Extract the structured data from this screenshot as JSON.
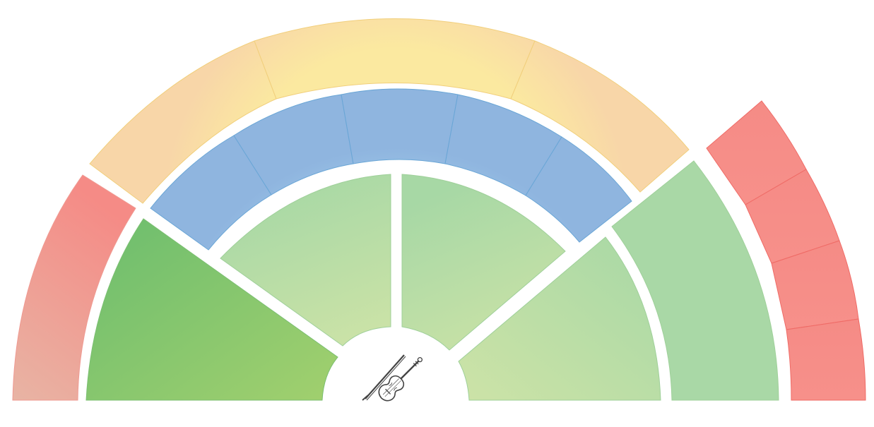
{
  "diagram": {
    "center_icon": "violin-with-bow-icon",
    "colors": {
      "red": [
        "#e8b4a4",
        "#f58b86"
      ],
      "red_line": "#ef6b66",
      "yellow": [
        "#fbe9a0",
        "#f8d6a8"
      ],
      "yellow_line": "#f1cf7c",
      "blue": [
        "#a9d8f2",
        "#8fb5df"
      ],
      "blue_line": "#6aa6d6",
      "green_dark": [
        "#6bbd6e",
        "#a2d06e"
      ],
      "green_light": [
        "#cde3a7",
        "#a7d8a5"
      ]
    },
    "sections": [
      {
        "key": "left-red-arc",
        "color": "red",
        "segments": 1
      },
      {
        "key": "left-dark-green-sector",
        "color": "green_dark",
        "segments": 1
      },
      {
        "key": "top-yellow-arc",
        "color": "yellow",
        "segments": 3
      },
      {
        "key": "blue-arc",
        "color": "blue",
        "segments": 5
      },
      {
        "key": "inner-green-sector-left",
        "color": "green_light",
        "segments": 1
      },
      {
        "key": "inner-green-sector-right",
        "color": "green_light",
        "segments": 1
      },
      {
        "key": "right-green-sector",
        "color": "green_light",
        "segments": 1
      },
      {
        "key": "right-green-arc",
        "color": "green_light",
        "segments": 1
      },
      {
        "key": "right-red-arc",
        "color": "red",
        "segments": 4
      }
    ]
  }
}
